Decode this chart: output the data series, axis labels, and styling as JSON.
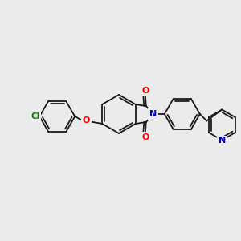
{
  "background_color": "#ebebeb",
  "bond_color": "#1a1a1a",
  "atom_colors": {
    "O": "#ff0000",
    "N": "#0000cc",
    "Cl": "#008000"
  },
  "lw": 1.3,
  "figsize": [
    3.0,
    3.0
  ],
  "dpi": 100
}
